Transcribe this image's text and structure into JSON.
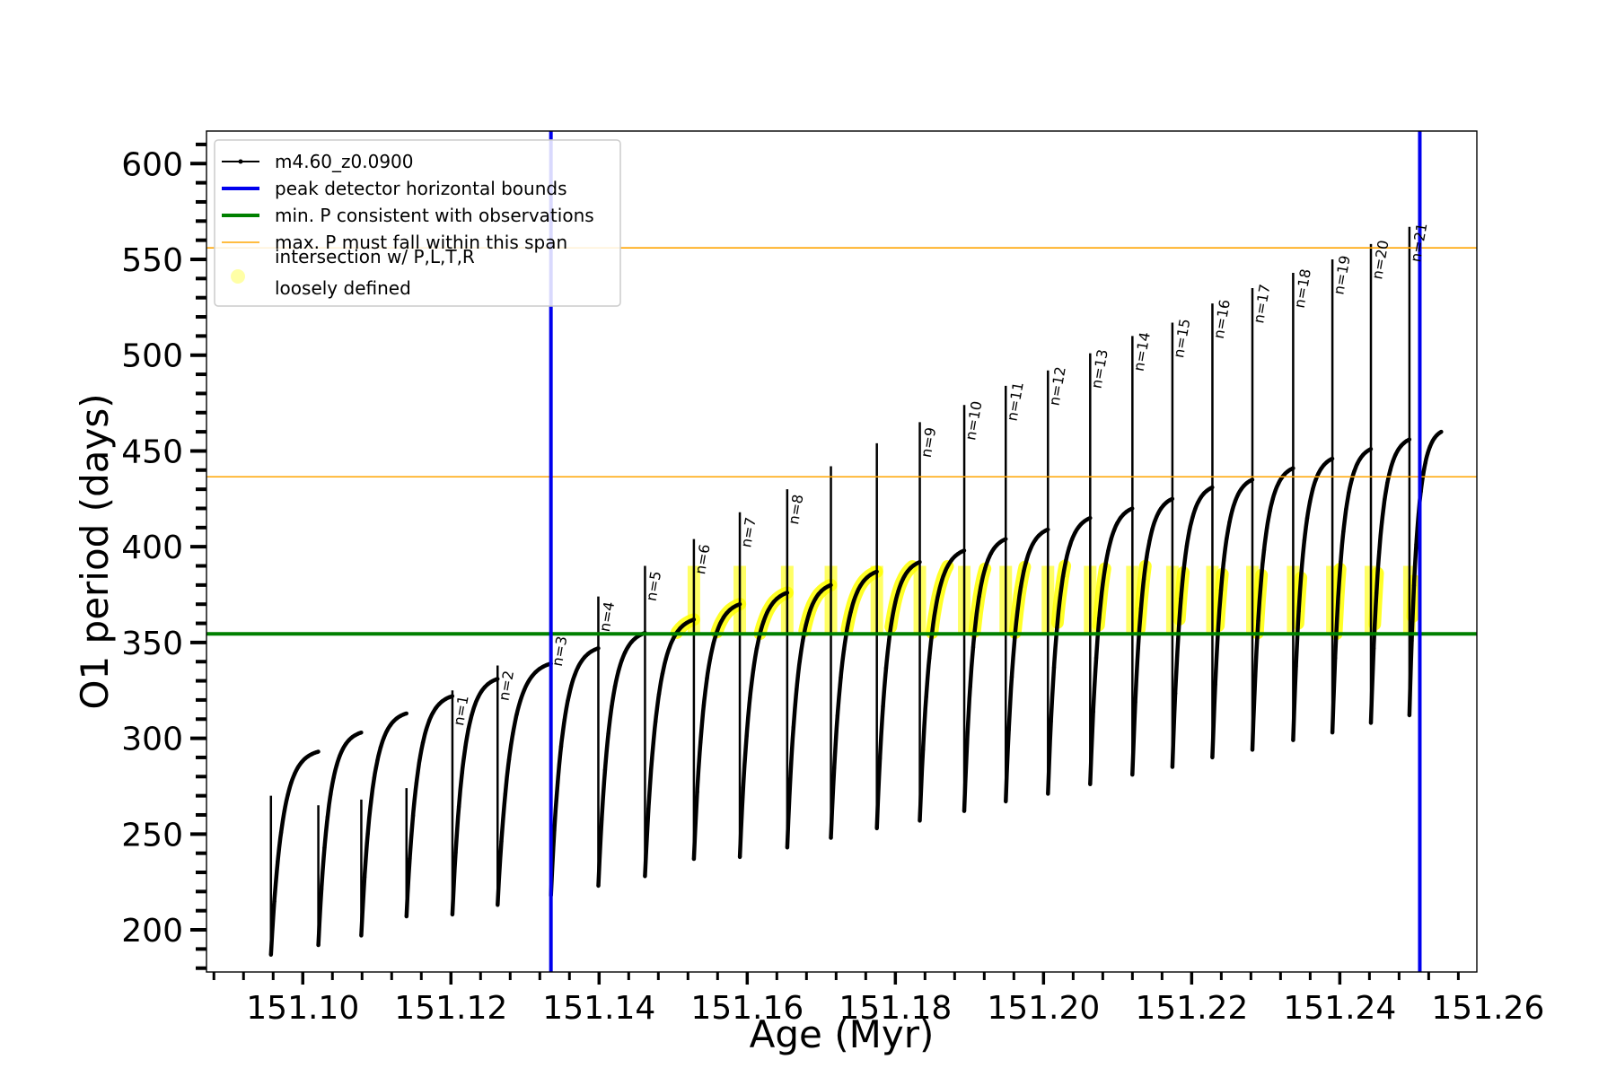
{
  "chart_data": {
    "type": "line",
    "title": "",
    "xlabel": "Age (Myr)",
    "ylabel": "O1 period (days)",
    "xlim": [
      151.087,
      151.2585
    ],
    "ylim": [
      178,
      617
    ],
    "x_ticks": [
      151.1,
      151.12,
      151.14,
      151.16,
      151.18,
      151.2,
      151.22,
      151.24,
      151.26
    ],
    "x_tick_labels": [
      "151.10",
      "151.12",
      "151.14",
      "151.16",
      "151.18",
      "151.20",
      "151.22",
      "151.24",
      "151.26"
    ],
    "x_minor_step": 0.004,
    "y_ticks": [
      200,
      250,
      300,
      350,
      400,
      450,
      500,
      550,
      600
    ],
    "y_tick_labels": [
      "200",
      "250",
      "300",
      "350",
      "400",
      "450",
      "500",
      "550",
      "600"
    ],
    "y_minor_step": 10,
    "grid": false,
    "legend_position": "upper-left",
    "legend": [
      {
        "label": "m4.60_z0.0900",
        "color": "#000000",
        "style": "line-marker"
      },
      {
        "label": "peak detector horizontal bounds",
        "color": "#0000ee",
        "style": "thick-line"
      },
      {
        "label": "min. P consistent with observations",
        "color": "#008000",
        "style": "thick-line"
      },
      {
        "label": "max. P must fall within this span",
        "color": "#ffa500",
        "style": "thin-line"
      },
      {
        "label": "intersection w/ P,L,T,R",
        "label2": "loosely defined",
        "color": "#ffff00",
        "style": "dot"
      }
    ],
    "vertical_lines": {
      "name": "peak detector horizontal bounds",
      "color": "#0000ee",
      "x": [
        151.1335,
        151.2508
      ]
    },
    "horizontal_lines": [
      {
        "name": "min. P consistent with observations",
        "color": "#008000",
        "y": 354.5
      },
      {
        "name": "max. P must fall within this span",
        "color": "#ffa500",
        "y": 436.5
      },
      {
        "name": "max. P must fall within this span",
        "color": "#ffa500",
        "y": 556
      }
    ],
    "series": [
      {
        "name": "m4.60_z0.0900",
        "color": "#000000",
        "pulses": [
          {
            "start": 151.0957,
            "end": 151.1021,
            "start_peak": 270,
            "start_min": 187,
            "end_peak": 293,
            "end_min": 192
          },
          {
            "start": 151.1021,
            "end": 151.1079,
            "start_peak": 265,
            "start_min": 192,
            "end_peak": 303,
            "end_min": 197
          },
          {
            "start": 151.1079,
            "end": 151.114,
            "start_peak": 268,
            "start_min": 197,
            "end_peak": 313,
            "end_min": 207
          },
          {
            "start": 151.114,
            "end": 151.1202,
            "start_peak": 274,
            "start_min": 207,
            "end_peak": 322,
            "end_min": 208
          },
          {
            "start": 151.1202,
            "end": 151.1263,
            "start_peak": 325,
            "start_min": 208,
            "end_peak": 331,
            "end_min": 213
          },
          {
            "start": 151.1263,
            "end": 151.1335,
            "start_peak": 338,
            "start_min": 213,
            "end_peak": 339,
            "end_min": 218
          },
          {
            "start": 151.1335,
            "end": 151.1399,
            "start_peak": 360,
            "start_min": 218,
            "end_peak": 347,
            "end_min": 223
          },
          {
            "start": 151.1399,
            "end": 151.1462,
            "start_peak": 374,
            "start_min": 223,
            "end_peak": 355,
            "end_min": 228
          },
          {
            "start": 151.1462,
            "end": 151.1528,
            "start_peak": 390,
            "start_min": 228,
            "end_peak": 362,
            "end_min": 237
          },
          {
            "start": 151.1528,
            "end": 151.159,
            "start_peak": 404,
            "start_min": 237,
            "end_peak": 370,
            "end_min": 238
          },
          {
            "start": 151.159,
            "end": 151.1654,
            "start_peak": 418,
            "start_min": 238,
            "end_peak": 376,
            "end_min": 243
          },
          {
            "start": 151.1654,
            "end": 151.1713,
            "start_peak": 430,
            "start_min": 243,
            "end_peak": 380,
            "end_min": 248
          },
          {
            "start": 151.1713,
            "end": 151.1775,
            "start_peak": 442,
            "start_min": 248,
            "end_peak": 387,
            "end_min": 253
          },
          {
            "start": 151.1775,
            "end": 151.1833,
            "start_peak": 454,
            "start_min": 253,
            "end_peak": 392,
            "end_min": 257
          },
          {
            "start": 151.1833,
            "end": 151.1893,
            "start_peak": 465,
            "start_min": 257,
            "end_peak": 398,
            "end_min": 262
          },
          {
            "start": 151.1893,
            "end": 151.1949,
            "start_peak": 474,
            "start_min": 262,
            "end_peak": 404,
            "end_min": 267
          },
          {
            "start": 151.1949,
            "end": 151.2006,
            "start_peak": 484,
            "start_min": 267,
            "end_peak": 409,
            "end_min": 271
          },
          {
            "start": 151.2006,
            "end": 151.2063,
            "start_peak": 492,
            "start_min": 271,
            "end_peak": 415,
            "end_min": 276
          },
          {
            "start": 151.2063,
            "end": 151.212,
            "start_peak": 501,
            "start_min": 276,
            "end_peak": 420,
            "end_min": 281
          },
          {
            "start": 151.212,
            "end": 151.2174,
            "start_peak": 510,
            "start_min": 281,
            "end_peak": 425,
            "end_min": 285
          },
          {
            "start": 151.2174,
            "end": 151.2228,
            "start_peak": 517,
            "start_min": 285,
            "end_peak": 431,
            "end_min": 290
          },
          {
            "start": 151.2228,
            "end": 151.2282,
            "start_peak": 527,
            "start_min": 290,
            "end_peak": 435,
            "end_min": 294
          },
          {
            "start": 151.2282,
            "end": 151.2337,
            "start_peak": 535,
            "start_min": 294,
            "end_peak": 441,
            "end_min": 299
          },
          {
            "start": 151.2337,
            "end": 151.239,
            "start_peak": 543,
            "start_min": 299,
            "end_peak": 446,
            "end_min": 303
          },
          {
            "start": 151.239,
            "end": 151.2442,
            "start_peak": 550,
            "start_min": 303,
            "end_peak": 451,
            "end_min": 308
          },
          {
            "start": 151.2442,
            "end": 151.2494,
            "start_peak": 558,
            "start_min": 308,
            "end_peak": 456,
            "end_min": 312
          },
          {
            "start": 151.2494,
            "end": 151.2537,
            "start_peak": 567,
            "start_min": 312,
            "end_peak": 460,
            "end_min": 460
          }
        ]
      }
    ],
    "highlight": {
      "name": "intersection w/ P,L,T,R",
      "color": "#ffff00",
      "y_range": [
        354.5,
        390
      ],
      "x_range": [
        151.1497,
        151.2515
      ]
    },
    "annotations": [
      {
        "text": "n=1",
        "x": 151.1202,
        "y": 325
      },
      {
        "text": "n=2",
        "x": 151.1263,
        "y": 338
      },
      {
        "text": "n=3",
        "x": 151.1335,
        "y": 356
      },
      {
        "text": "n=4",
        "x": 151.1399,
        "y": 374
      },
      {
        "text": "n=5",
        "x": 151.1462,
        "y": 390
      },
      {
        "text": "n=6",
        "x": 151.1528,
        "y": 404
      },
      {
        "text": "n=7",
        "x": 151.159,
        "y": 418
      },
      {
        "text": "n=8",
        "x": 151.1654,
        "y": 430
      },
      {
        "text": "n=9",
        "x": 151.1833,
        "y": 465
      },
      {
        "text": "n=10",
        "x": 151.1893,
        "y": 474
      },
      {
        "text": "n=11",
        "x": 151.1949,
        "y": 484
      },
      {
        "text": "n=12",
        "x": 151.2006,
        "y": 492
      },
      {
        "text": "n=13",
        "x": 151.2063,
        "y": 501
      },
      {
        "text": "n=14",
        "x": 151.212,
        "y": 510
      },
      {
        "text": "n=15",
        "x": 151.2174,
        "y": 517
      },
      {
        "text": "n=16",
        "x": 151.2228,
        "y": 527
      },
      {
        "text": "n=17",
        "x": 151.2282,
        "y": 535
      },
      {
        "text": "n=18",
        "x": 151.2337,
        "y": 543
      },
      {
        "text": "n=19",
        "x": 151.239,
        "y": 550
      },
      {
        "text": "n=20",
        "x": 151.2442,
        "y": 558
      },
      {
        "text": "n=21",
        "x": 151.2494,
        "y": 567
      }
    ]
  }
}
